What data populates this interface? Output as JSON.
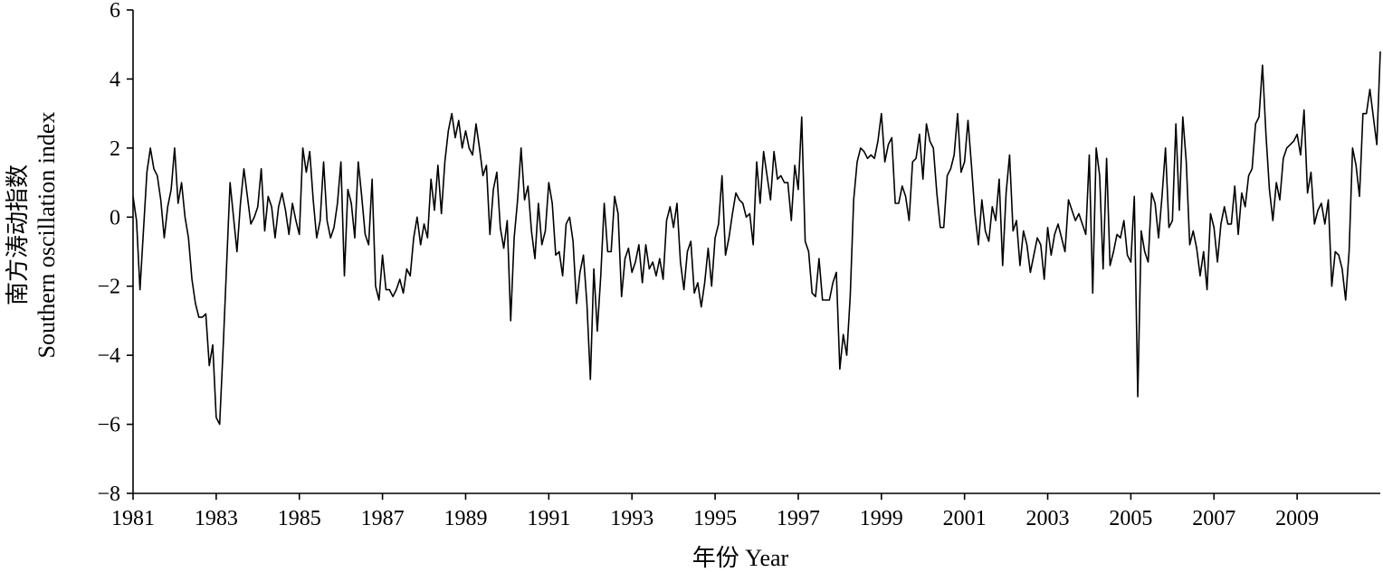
{
  "chart_data": {
    "type": "line",
    "title": "",
    "xlabel": "年份 Year",
    "ylabel_cn": "南方涛动指数",
    "ylabel_en": "Southern oscillation index",
    "xlim": [
      1981,
      2011
    ],
    "ylim": [
      -8,
      6
    ],
    "x_ticks": [
      1981,
      1983,
      1985,
      1987,
      1989,
      1991,
      1993,
      1995,
      1997,
      1999,
      2001,
      2003,
      2005,
      2007,
      2009
    ],
    "y_ticks": [
      6,
      4,
      2,
      0,
      -2,
      -4,
      -6,
      -8
    ],
    "y_tick_labels": [
      "6",
      "4",
      "2",
      "0",
      "−2",
      "−4",
      "−6",
      "−8"
    ],
    "grid": false,
    "legend": "none",
    "line_color": "#000000",
    "series": [
      {
        "name": "",
        "start": 1981.0,
        "step_months": 1,
        "values": [
          0.6,
          -0.1,
          -2.1,
          -0.4,
          1.3,
          2.0,
          1.4,
          1.2,
          0.5,
          -0.6,
          0.3,
          0.8,
          2.0,
          0.4,
          1.0,
          0.0,
          -0.6,
          -1.8,
          -2.5,
          -2.9,
          -2.9,
          -2.8,
          -4.3,
          -3.7,
          -5.8,
          -6.0,
          -3.8,
          -1.4,
          1.0,
          0.0,
          -1.0,
          0.4,
          1.4,
          0.6,
          -0.2,
          0.0,
          0.3,
          1.4,
          -0.4,
          0.6,
          0.3,
          -0.6,
          0.3,
          0.7,
          0.2,
          -0.5,
          0.4,
          -0.1,
          -0.5,
          2.0,
          1.3,
          1.9,
          0.5,
          -0.6,
          -0.1,
          1.6,
          -0.1,
          -0.6,
          -0.3,
          0.4,
          1.6,
          -1.7,
          0.8,
          0.4,
          -0.6,
          1.6,
          0.6,
          -0.5,
          -0.8,
          1.1,
          -2.0,
          -2.4,
          -1.1,
          -2.1,
          -2.1,
          -2.3,
          -2.1,
          -1.8,
          -2.2,
          -1.5,
          -1.7,
          -0.6,
          0.0,
          -0.8,
          -0.2,
          -0.6,
          1.1,
          0.2,
          1.5,
          0.1,
          1.6,
          2.5,
          3.0,
          2.3,
          2.8,
          2.0,
          2.5,
          2.0,
          1.8,
          2.7,
          2.0,
          1.2,
          1.5,
          -0.5,
          0.8,
          1.3,
          -0.3,
          -0.9,
          -0.1,
          -3.0,
          -0.6,
          0.5,
          2.0,
          0.5,
          0.9,
          -0.4,
          -1.2,
          0.4,
          -0.8,
          -0.4,
          1.0,
          0.4,
          -1.1,
          -1.0,
          -1.7,
          -0.2,
          0.0,
          -0.7,
          -2.5,
          -1.6,
          -1.1,
          -2.5,
          -4.7,
          -1.5,
          -3.3,
          -1.7,
          0.4,
          -1.0,
          -1.0,
          0.6,
          0.1,
          -2.3,
          -1.2,
          -0.9,
          -1.6,
          -1.3,
          -0.8,
          -1.9,
          -0.8,
          -1.5,
          -1.3,
          -1.7,
          -1.2,
          -1.8,
          -0.1,
          0.3,
          -0.3,
          0.4,
          -1.3,
          -2.1,
          -1.0,
          -0.7,
          -2.2,
          -1.9,
          -2.6,
          -1.9,
          -0.9,
          -2.0,
          -0.6,
          -0.2,
          1.2,
          -1.1,
          -0.6,
          0.1,
          0.7,
          0.5,
          0.4,
          0.0,
          0.1,
          -0.8,
          1.6,
          0.4,
          1.9,
          1.2,
          0.5,
          1.9,
          1.1,
          1.2,
          1.0,
          1.0,
          -0.1,
          1.5,
          0.8,
          2.9,
          -0.7,
          -1.0,
          -2.2,
          -2.3,
          -1.2,
          -2.4,
          -2.4,
          -2.4,
          -1.9,
          -1.6,
          -4.4,
          -3.4,
          -4.0,
          -2.3,
          0.5,
          1.6,
          2.0,
          1.9,
          1.7,
          1.8,
          1.7,
          2.2,
          3.0,
          1.6,
          2.1,
          2.3,
          0.4,
          0.4,
          0.9,
          0.6,
          -0.1,
          1.6,
          1.7,
          2.4,
          1.1,
          2.7,
          2.2,
          2.0,
          0.7,
          -0.3,
          -0.3,
          1.2,
          1.4,
          1.8,
          3.0,
          1.3,
          1.6,
          2.8,
          1.5,
          0.1,
          -0.8,
          0.5,
          -0.4,
          -0.7,
          0.3,
          -0.1,
          1.1,
          -1.4,
          0.7,
          1.8,
          -0.4,
          -0.1,
          -1.4,
          -0.4,
          -0.8,
          -1.6,
          -1.1,
          -0.6,
          -0.8,
          -1.8,
          -0.3,
          -1.1,
          -0.5,
          -0.2,
          -0.6,
          -1.0,
          0.5,
          0.2,
          -0.1,
          0.1,
          -0.2,
          -0.5,
          1.8,
          -2.2,
          2.0,
          1.2,
          -1.5,
          1.7,
          -1.4,
          -1.0,
          -0.5,
          -0.6,
          -0.1,
          -1.1,
          -1.3,
          0.6,
          -5.2,
          -0.4,
          -1.0,
          -1.3,
          0.7,
          0.4,
          -0.6,
          0.6,
          2.0,
          -0.3,
          -0.1,
          2.7,
          0.2,
          2.9,
          1.6,
          -0.8,
          -0.4,
          -0.9,
          -1.7,
          -1.0,
          -2.1,
          0.1,
          -0.3,
          -1.3,
          -0.2,
          0.3,
          -0.2,
          -0.2,
          0.9,
          -0.5,
          0.7,
          0.3,
          1.2,
          1.4,
          2.7,
          2.9,
          4.4,
          2.4,
          0.8,
          -0.1,
          1.0,
          0.5,
          1.7,
          2.0,
          2.1,
          2.2,
          2.4,
          1.8,
          3.1,
          0.7,
          1.3,
          -0.2,
          0.2,
          0.4,
          -0.2,
          0.5,
          -2.0,
          -1.0,
          -1.1,
          -1.5,
          -2.4,
          -1.0,
          2.0,
          1.5,
          0.6,
          3.0,
          3.0,
          3.7,
          2.9,
          2.1,
          4.8
        ]
      }
    ]
  }
}
